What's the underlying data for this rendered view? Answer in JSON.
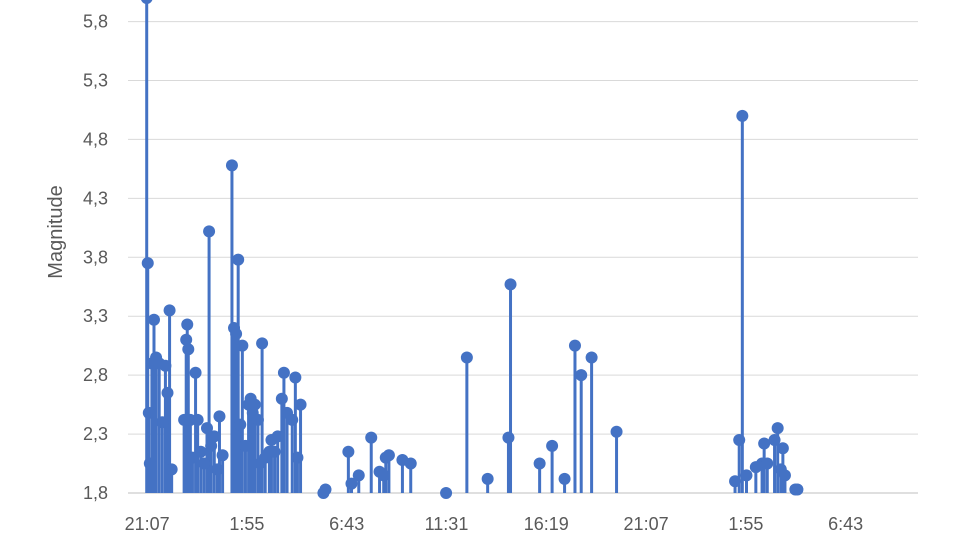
{
  "chart_data": {
    "type": "scatter",
    "style": "stem",
    "ylabel": "Magnitude",
    "xlabel": "",
    "title": "",
    "ylim": [
      1.8,
      6.0
    ],
    "yticks": [
      "1,8",
      "2,3",
      "2,8",
      "3,3",
      "3,8",
      "4,3",
      "4,8",
      "5,3",
      "5,8"
    ],
    "xlim_hours": [
      20.2,
      58.2
    ],
    "xticks": [
      {
        "label": "21:07",
        "hour": 21.12
      },
      {
        "label": "1:55",
        "hour": 25.92
      },
      {
        "label": "6:43",
        "hour": 30.72
      },
      {
        "label": "11:31",
        "hour": 35.52
      },
      {
        "label": "16:19",
        "hour": 40.32
      },
      {
        "label": "21:07",
        "hour": 45.12
      },
      {
        "label": "1:55",
        "hour": 49.92
      },
      {
        "label": "6:43",
        "hour": 54.72
      }
    ],
    "grid": true,
    "color": "#4472c4",
    "points": [
      [
        21.1,
        6.0
      ],
      [
        21.15,
        3.75
      ],
      [
        21.2,
        2.48
      ],
      [
        21.25,
        2.05
      ],
      [
        21.35,
        2.9
      ],
      [
        21.45,
        3.27
      ],
      [
        21.55,
        2.95
      ],
      [
        21.7,
        2.9
      ],
      [
        21.85,
        2.4
      ],
      [
        22.0,
        2.88
      ],
      [
        22.1,
        2.65
      ],
      [
        22.2,
        3.35
      ],
      [
        22.3,
        2.0
      ],
      [
        22.9,
        2.42
      ],
      [
        23.0,
        3.1
      ],
      [
        23.05,
        3.23
      ],
      [
        23.1,
        3.02
      ],
      [
        23.2,
        2.42
      ],
      [
        23.3,
        2.1
      ],
      [
        23.45,
        2.82
      ],
      [
        23.55,
        2.42
      ],
      [
        23.7,
        2.15
      ],
      [
        23.85,
        2.05
      ],
      [
        24.0,
        2.35
      ],
      [
        24.1,
        4.02
      ],
      [
        24.2,
        2.2
      ],
      [
        24.35,
        2.28
      ],
      [
        24.5,
        2.0
      ],
      [
        24.6,
        2.45
      ],
      [
        24.75,
        2.12
      ],
      [
        25.2,
        4.58
      ],
      [
        25.3,
        3.2
      ],
      [
        25.4,
        3.15
      ],
      [
        25.5,
        3.78
      ],
      [
        25.6,
        2.38
      ],
      [
        25.7,
        3.05
      ],
      [
        25.85,
        2.2
      ],
      [
        26.0,
        2.55
      ],
      [
        26.1,
        2.6
      ],
      [
        26.2,
        2.48
      ],
      [
        26.3,
        2.55
      ],
      [
        26.45,
        2.42
      ],
      [
        26.55,
        2.05
      ],
      [
        26.65,
        3.07
      ],
      [
        26.8,
        2.1
      ],
      [
        27.0,
        2.15
      ],
      [
        27.1,
        2.25
      ],
      [
        27.25,
        2.15
      ],
      [
        27.4,
        2.28
      ],
      [
        27.6,
        2.6
      ],
      [
        27.7,
        2.82
      ],
      [
        27.85,
        2.48
      ],
      [
        28.1,
        2.42
      ],
      [
        28.25,
        2.78
      ],
      [
        28.35,
        2.1
      ],
      [
        28.5,
        2.55
      ],
      [
        29.6,
        1.8
      ],
      [
        29.7,
        1.83
      ],
      [
        30.8,
        2.15
      ],
      [
        30.95,
        1.88
      ],
      [
        31.3,
        1.95
      ],
      [
        31.9,
        2.27
      ],
      [
        32.3,
        1.98
      ],
      [
        32.5,
        1.95
      ],
      [
        32.6,
        2.1
      ],
      [
        32.75,
        2.12
      ],
      [
        33.4,
        2.08
      ],
      [
        33.8,
        2.05
      ],
      [
        35.5,
        1.8
      ],
      [
        36.5,
        2.95
      ],
      [
        37.5,
        1.92
      ],
      [
        38.5,
        2.27
      ],
      [
        38.6,
        3.57
      ],
      [
        40.0,
        2.05
      ],
      [
        40.6,
        2.2
      ],
      [
        41.2,
        1.92
      ],
      [
        41.7,
        3.05
      ],
      [
        42.0,
        2.8
      ],
      [
        42.5,
        2.95
      ],
      [
        43.7,
        2.32
      ],
      [
        49.4,
        1.9
      ],
      [
        49.6,
        2.25
      ],
      [
        49.75,
        5.0
      ],
      [
        49.95,
        1.95
      ],
      [
        50.4,
        2.02
      ],
      [
        50.7,
        2.05
      ],
      [
        50.8,
        2.22
      ],
      [
        50.95,
        2.05
      ],
      [
        51.3,
        2.25
      ],
      [
        51.45,
        2.35
      ],
      [
        51.6,
        2.0
      ],
      [
        51.7,
        2.18
      ],
      [
        51.8,
        1.95
      ],
      [
        52.3,
        1.83
      ],
      [
        52.4,
        1.83
      ]
    ]
  }
}
